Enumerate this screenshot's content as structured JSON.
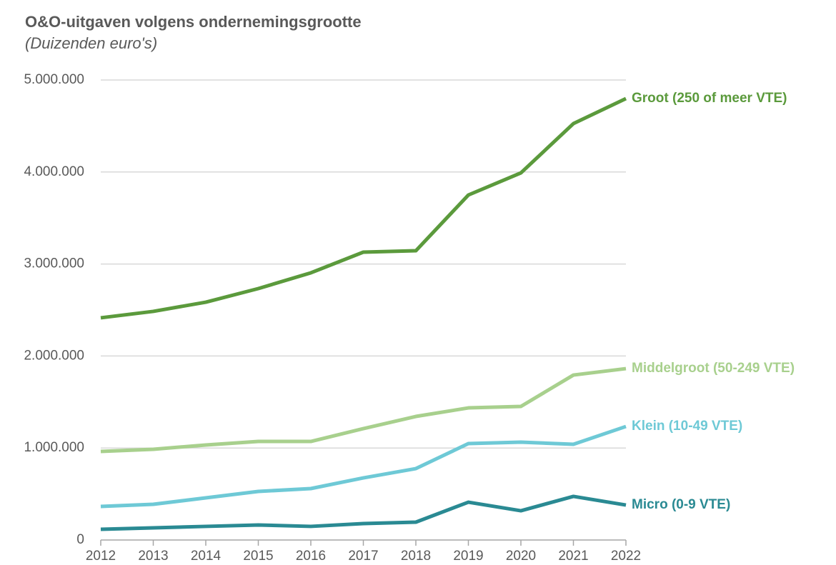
{
  "chart_data": {
    "type": "line",
    "title": "O&O-uitgaven volgens ondernemingsgrootte",
    "subtitle": "(Duizenden euro's)",
    "x": [
      2012,
      2013,
      2014,
      2015,
      2016,
      2017,
      2018,
      2019,
      2020,
      2021,
      2022
    ],
    "xlim": [
      2012,
      2022
    ],
    "xticks": [
      2012,
      2013,
      2014,
      2015,
      2016,
      2017,
      2018,
      2019,
      2020,
      2021,
      2022
    ],
    "ylim": [
      0,
      5000000
    ],
    "yticks": [
      0,
      {
        "value": 1000000,
        "label": "1.000.000"
      },
      {
        "value": 2000000,
        "label": "2.000.000"
      },
      {
        "value": 3000000,
        "label": "3.000.000"
      },
      {
        "value": 4000000,
        "label": "4.000.000"
      },
      {
        "value": 5000000,
        "label": "5.000.000"
      }
    ],
    "grid": true,
    "legend": "end",
    "series": [
      {
        "name": "Groot (250 of meer VTE)",
        "color": "#5b9a3c",
        "values": [
          2415000,
          2485000,
          2585000,
          2733000,
          2904000,
          3129000,
          3144000,
          3750000,
          3990000,
          4526000,
          4798000
        ]
      },
      {
        "name": "Middelgroot (50-249 VTE)",
        "color": "#a8d08d",
        "values": [
          963000,
          986000,
          1033000,
          1071000,
          1071000,
          1211000,
          1343000,
          1436000,
          1452000,
          1793000,
          1863000
        ]
      },
      {
        "name": "Klein (10-49 VTE)",
        "color": "#6ec9d6",
        "values": [
          365000,
          388000,
          458000,
          528000,
          559000,
          675000,
          776000,
          1048000,
          1064000,
          1040000,
          1234000
        ]
      },
      {
        "name": "Micro (0-9 VTE)",
        "color": "#2a8a93",
        "values": [
          116000,
          132000,
          148000,
          163000,
          148000,
          179000,
          194000,
          411000,
          318000,
          474000,
          380000
        ]
      }
    ]
  }
}
